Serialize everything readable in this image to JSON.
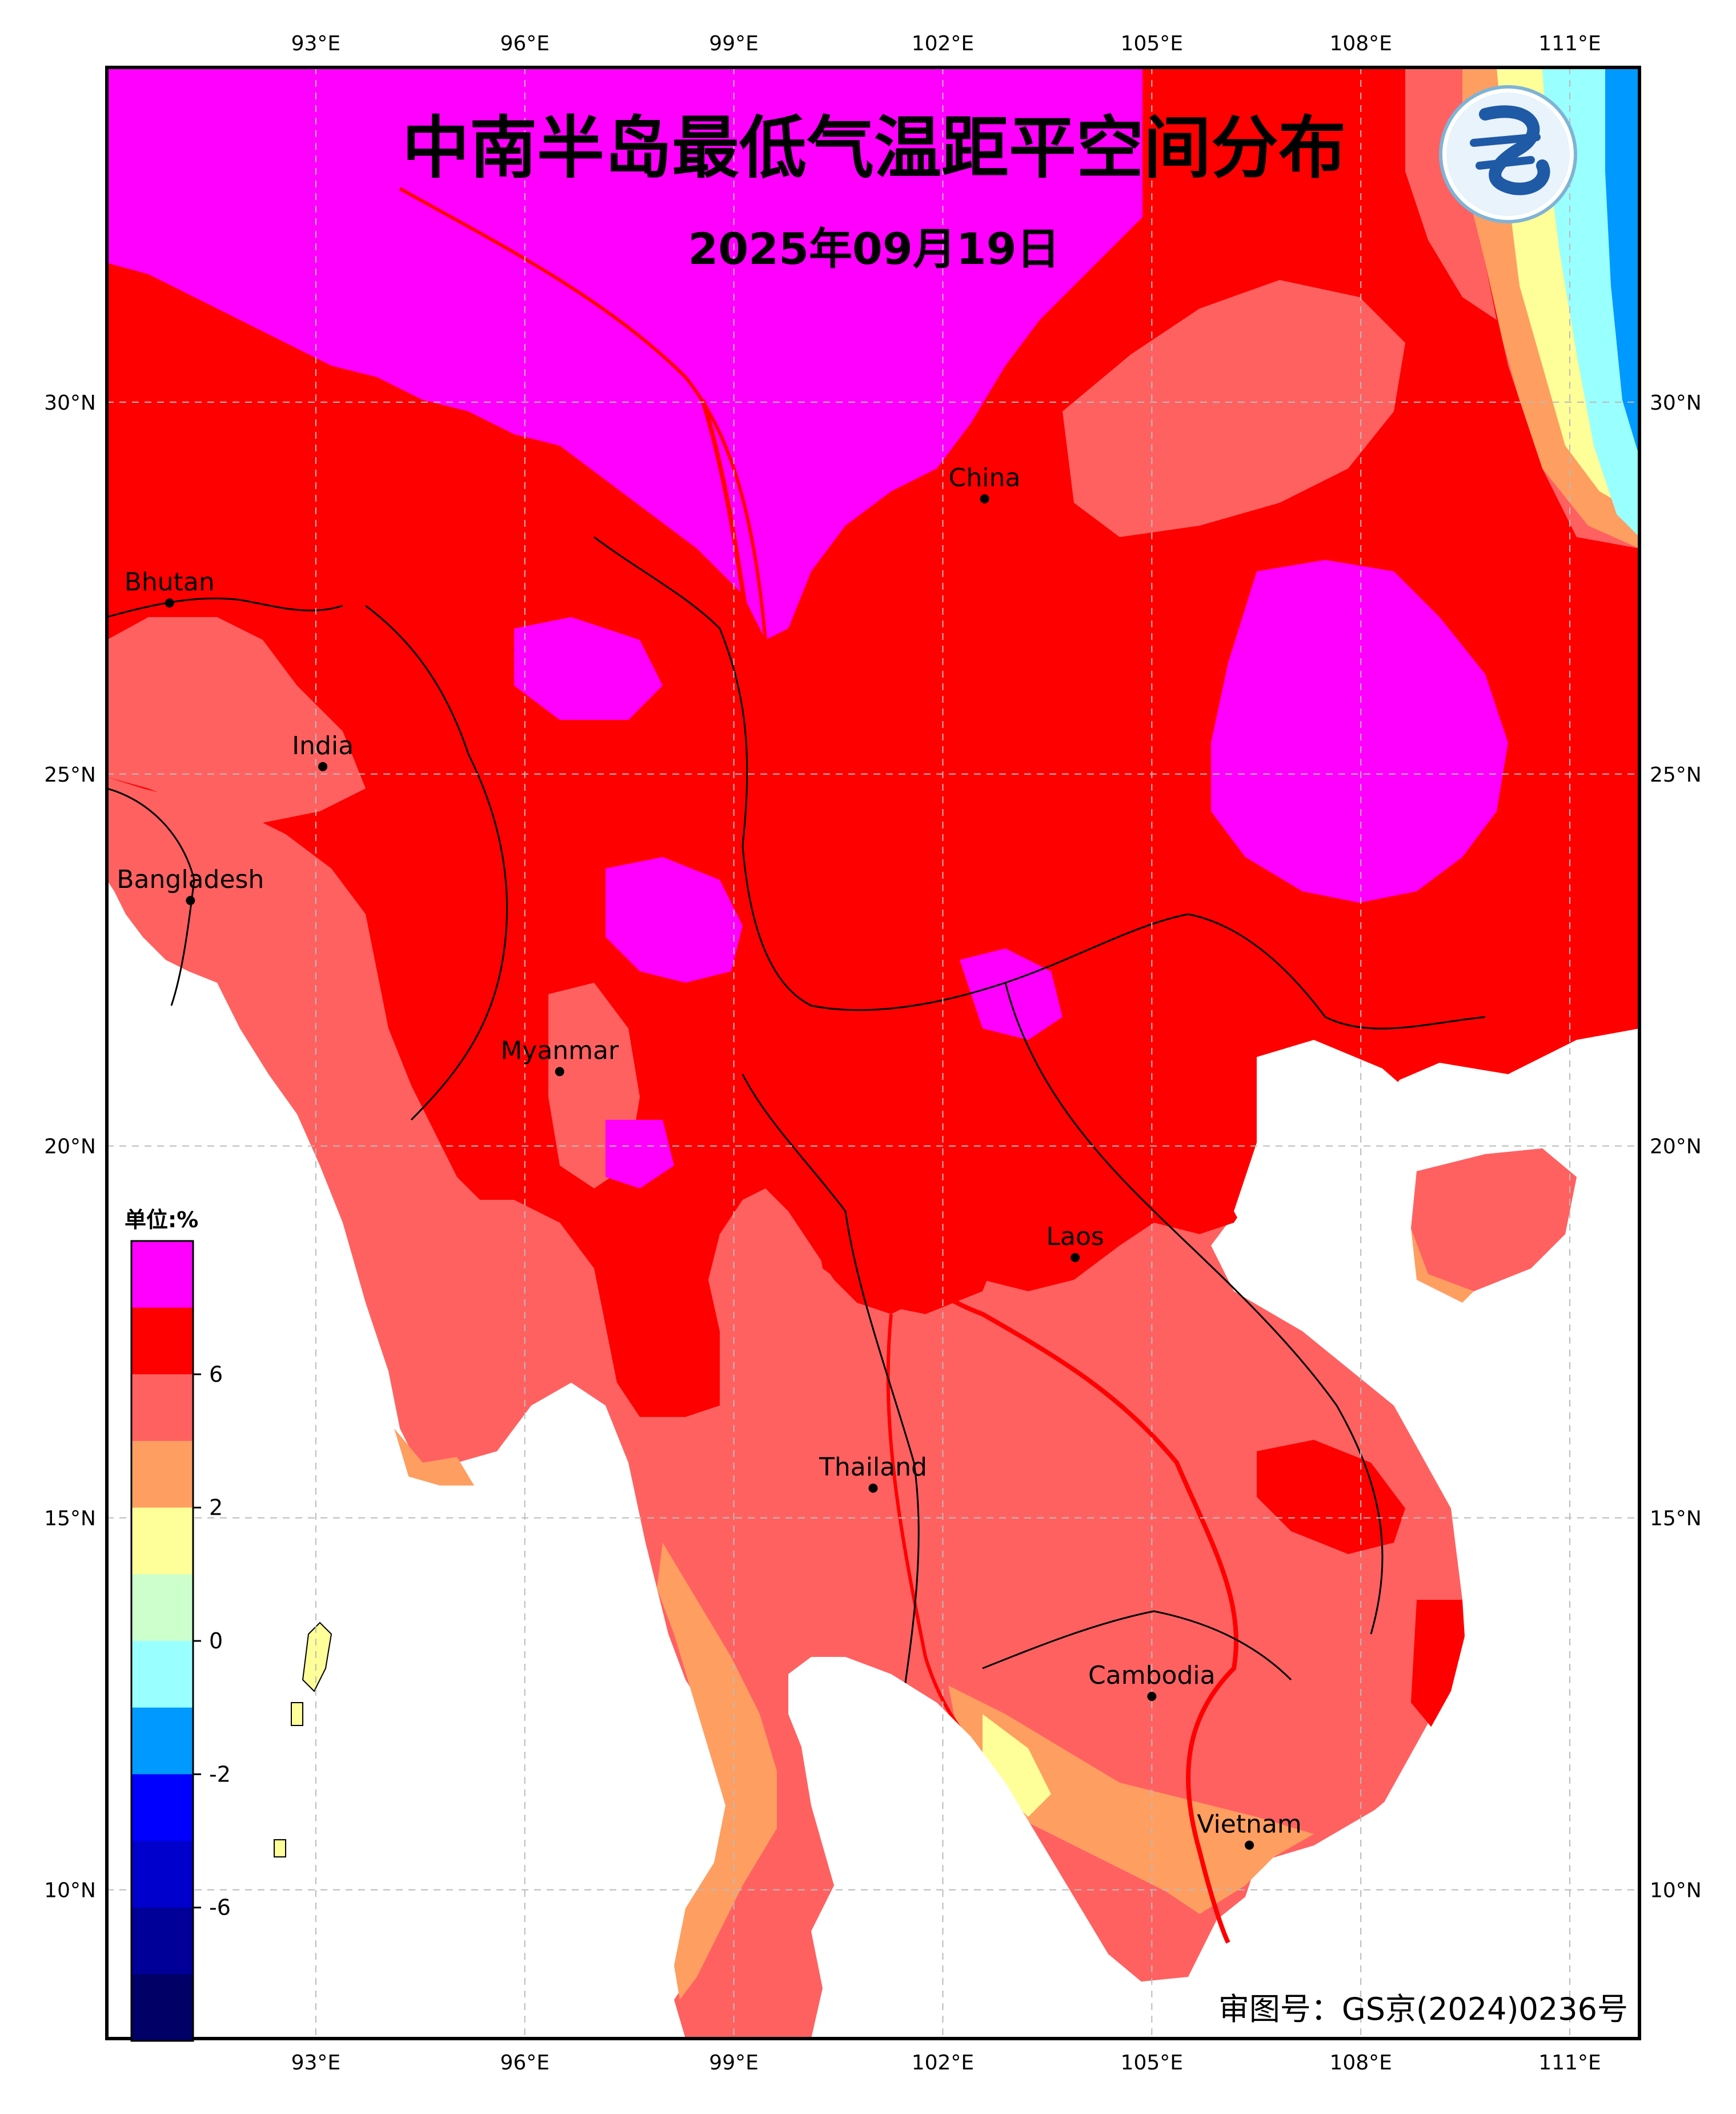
{
  "title": "中南半岛最低气温距平空间分布",
  "date": "2025年09月19日",
  "approval": "审图号：GS京(2024)0236号",
  "unit_label": "单位:%",
  "logo_icon": "cma-dragon-logo-icon",
  "lon_ticks": [
    "93°E",
    "96°E",
    "99°E",
    "102°E",
    "105°E",
    "108°E",
    "111°E"
  ],
  "lat_ticks": [
    "30°N",
    "25°N",
    "20°N",
    "15°N",
    "10°N"
  ],
  "map_extent": {
    "lon": [
      90.0,
      112.0
    ],
    "lat": [
      8.0,
      34.5
    ]
  },
  "places": [
    {
      "name": "China",
      "lon": 102.6,
      "lat": 28.7
    },
    {
      "name": "Bhutan",
      "lon": 90.9,
      "lat": 27.3
    },
    {
      "name": "India",
      "lon": 93.1,
      "lat": 25.1
    },
    {
      "name": "Bangladesh",
      "lon": 91.2,
      "lat": 23.3
    },
    {
      "name": "Myanmar",
      "lon": 96.5,
      "lat": 21.0
    },
    {
      "name": "Laos",
      "lon": 103.9,
      "lat": 18.5
    },
    {
      "name": "Thailand",
      "lon": 101.0,
      "lat": 15.4
    },
    {
      "name": "Cambodia",
      "lon": 105.0,
      "lat": 12.6
    },
    {
      "name": "Vietnam",
      "lon": 106.4,
      "lat": 10.6
    }
  ],
  "legend": {
    "colors": [
      "#ff00ff",
      "#ff0000",
      "#ff6161",
      "#ff9e61",
      "#ffff99",
      "#ccffcc",
      "#99ffff",
      "#0099ff",
      "#0000ff",
      "#0000cc",
      "#000099",
      "#000066"
    ],
    "tick_labels": [
      "6",
      "2",
      "0",
      "-2",
      "-6"
    ]
  },
  "ocean_color": "#ffffff"
}
